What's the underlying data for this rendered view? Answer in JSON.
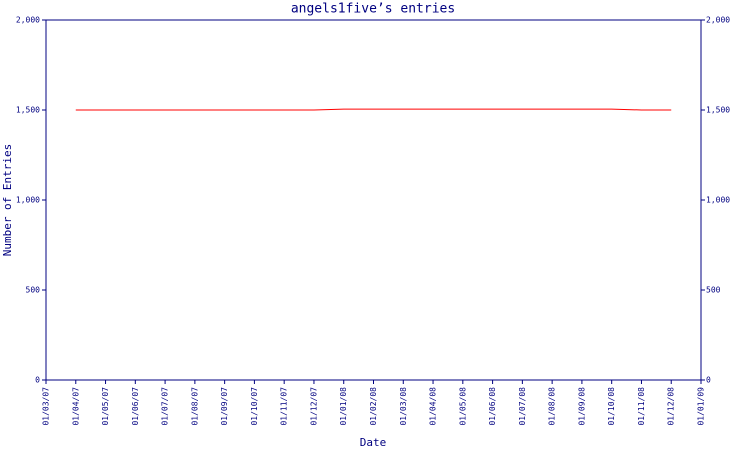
{
  "chart_data": {
    "type": "line",
    "title": "angels1five’s entries",
    "x_label": "Date",
    "y_label": "Number of Entries",
    "categories": [
      "01/03/07",
      "01/04/07",
      "01/05/07",
      "01/06/07",
      "01/07/07",
      "01/08/07",
      "01/09/07",
      "01/10/07",
      "01/11/07",
      "01/12/07",
      "01/01/08",
      "01/02/08",
      "01/03/08",
      "01/04/08",
      "01/05/08",
      "01/06/08",
      "01/07/08",
      "01/08/08",
      "01/09/08",
      "01/10/08",
      "01/11/08",
      "01/12/08",
      "01/01/09"
    ],
    "series": [
      {
        "color": "#ff0000",
        "values": [
          null,
          1500,
          1500,
          1500,
          1500,
          1500,
          1500,
          1500,
          1500,
          1500,
          1505,
          1505,
          1505,
          1505,
          1505,
          1505,
          1505,
          1505,
          1505,
          1505,
          1500,
          1500,
          null
        ]
      }
    ],
    "ylim": [
      0,
      2000
    ],
    "yticks": [
      0,
      500,
      {
        "value": 1000,
        "label": "1,000"
      },
      {
        "value": 1500,
        "label": "1,500"
      },
      {
        "value": 2000,
        "label": "2,000"
      }
    ],
    "axis_color": "#000080"
  }
}
